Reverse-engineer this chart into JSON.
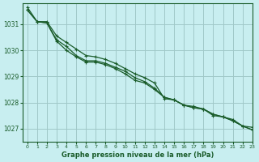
{
  "title": "Graphe pression niveau de la mer (hPa)",
  "background_color": "#c8eef0",
  "grid_color": "#a0c8c8",
  "line_color": "#1a5c2a",
  "xlim": [
    -0.5,
    23
  ],
  "ylim": [
    1026.5,
    1031.8
  ],
  "yticks": [
    1027,
    1028,
    1029,
    1030,
    1031
  ],
  "xticks": [
    0,
    1,
    2,
    3,
    4,
    5,
    6,
    7,
    8,
    9,
    10,
    11,
    12,
    13,
    14,
    15,
    16,
    17,
    18,
    19,
    20,
    21,
    22,
    23
  ],
  "series": [
    [
      1031.55,
      1031.1,
      1031.1,
      1030.55,
      1030.3,
      1030.05,
      1029.8,
      1029.75,
      1029.65,
      1029.5,
      1029.3,
      1029.1,
      1028.95,
      1028.75,
      1028.15,
      1028.1,
      1027.9,
      1027.85,
      1027.75,
      1027.55,
      1027.45,
      1027.35,
      1027.1,
      1027.05
    ],
    [
      1031.55,
      1031.1,
      1031.05,
      1030.35,
      1030.0,
      1029.75,
      1029.55,
      1029.55,
      1029.45,
      1029.3,
      1029.1,
      1028.85,
      1028.75,
      1028.5,
      1028.2,
      1028.1,
      1027.9,
      1027.8,
      1027.75,
      1027.55,
      1027.45,
      1027.3,
      1027.1,
      1026.95
    ],
    [
      1031.65,
      1031.1,
      1031.05,
      1030.4,
      1030.15,
      1029.8,
      1029.6,
      1029.6,
      1029.5,
      1029.35,
      1029.2,
      1028.95,
      1028.8,
      1028.55,
      1028.2,
      1028.1,
      1027.9,
      1027.8,
      1027.75,
      1027.5,
      1027.45,
      1027.3,
      1027.1,
      1026.95
    ]
  ]
}
